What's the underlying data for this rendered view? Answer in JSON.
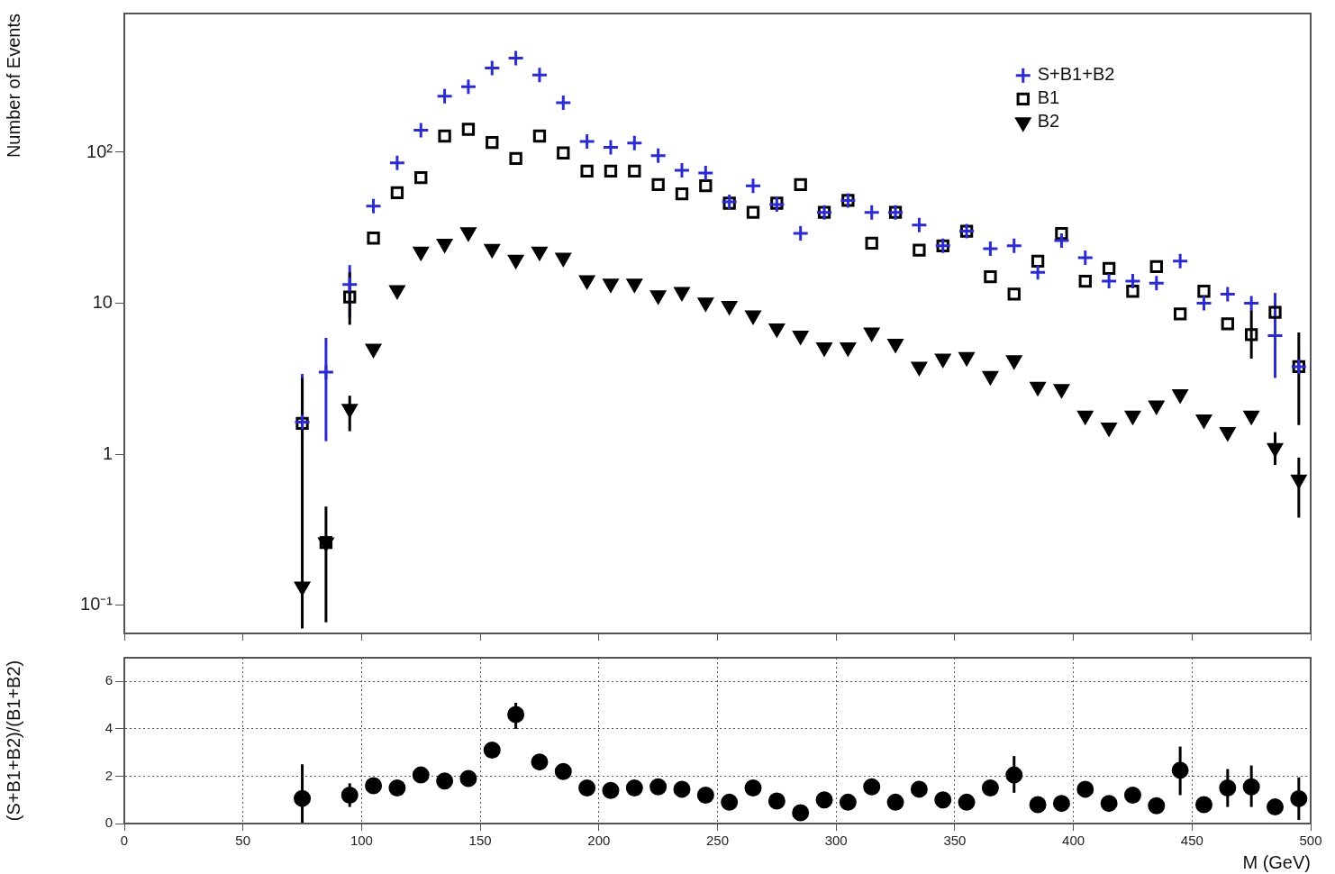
{
  "chart_data": [
    {
      "type": "scatter",
      "ylabel": "Number of Events",
      "log": "y",
      "grid": false,
      "legend": "top right",
      "tick_labels": "y",
      "x": [
        75,
        85,
        95,
        105,
        115,
        125,
        135,
        145,
        155,
        165,
        175,
        185,
        195,
        205,
        215,
        225,
        235,
        245,
        255,
        265,
        275,
        285,
        295,
        305,
        315,
        325,
        335,
        345,
        355,
        365,
        375,
        385,
        395,
        405,
        415,
        425,
        435,
        445,
        455,
        465,
        475,
        485,
        495
      ],
      "xlim": [
        0,
        500
      ],
      "xticks": [
        0,
        50,
        100,
        150,
        200,
        250,
        300,
        350,
        400,
        450,
        500
      ],
      "ylim": [
        0.065,
        830
      ],
      "yticks": [
        {
          "value": 0.1,
          "label": "10⁻¹"
        },
        1,
        10,
        {
          "value": 100,
          "label": "10²"
        }
      ],
      "series": [
        {
          "name": "S+B1+B2",
          "color": "#2b2bd0",
          "marker": "cross",
          "values": [
            1.63,
            3.5,
            13.3,
            44,
            85,
            140,
            235,
            272,
            362,
            420,
            325,
            213,
            118,
            108,
            115,
            95,
            76,
            73,
            47,
            60,
            45,
            29,
            40,
            48,
            40,
            40,
            33,
            24,
            30,
            23,
            24,
            16,
            26,
            20,
            14,
            14,
            13.6,
            19,
            10,
            11.5,
            10,
            6.1,
            3.8
          ],
          "errors": [
            [
              1.24,
              3.4
            ],
            [
              1.22,
              5.9
            ],
            [
              8,
              17.9
            ],
            null,
            null,
            null,
            null,
            null,
            null,
            null,
            null,
            null,
            null,
            null,
            null,
            null,
            null,
            null,
            null,
            null,
            null,
            null,
            null,
            null,
            null,
            null,
            null,
            null,
            null,
            null,
            null,
            null,
            null,
            null,
            null,
            null,
            null,
            null,
            null,
            null,
            null,
            [
              3.2,
              11.7
            ],
            null
          ]
        },
        {
          "name": "B1",
          "color": "#000000",
          "marker": "square",
          "values": [
            1.6,
            0.26,
            11,
            27,
            54,
            68,
            128,
            142,
            116,
            91,
            128,
            99,
            75,
            75,
            75,
            61,
            53,
            60,
            46,
            40,
            46,
            61,
            40,
            48,
            25,
            40,
            22.5,
            24,
            30,
            15,
            11.5,
            19,
            29,
            14,
            17,
            12,
            17.5,
            8.5,
            12,
            7.3,
            6.2,
            8.7,
            3.8
          ],
          "errors": [
            [
              0.07,
              3.2
            ],
            [
              0.077,
              0.45
            ],
            [
              7.2,
              16
            ],
            null,
            null,
            null,
            null,
            null,
            null,
            null,
            null,
            null,
            null,
            null,
            null,
            null,
            null,
            null,
            null,
            null,
            null,
            null,
            null,
            null,
            null,
            null,
            null,
            null,
            null,
            null,
            null,
            null,
            null,
            null,
            null,
            null,
            null,
            null,
            null,
            null,
            [
              4.3,
              9.0
            ],
            null,
            [
              1.56,
              6.4
            ]
          ]
        },
        {
          "name": "B2",
          "color": "#000000",
          "marker": "triangle",
          "values": [
            0.133,
            0.26,
            2.0,
            5.0,
            12.2,
            22,
            24.8,
            29.5,
            22.9,
            19.4,
            22,
            20,
            14.2,
            13.5,
            13.5,
            11.3,
            11.9,
            10.1,
            9.6,
            8.3,
            6.8,
            6.1,
            5.1,
            5.1,
            6.4,
            5.4,
            3.8,
            4.3,
            4.4,
            3.3,
            4.2,
            2.8,
            2.7,
            1.8,
            1.5,
            1.8,
            2.1,
            2.5,
            1.7,
            1.4,
            1.8,
            1.1,
            0.68
          ],
          "errors": [
            null,
            null,
            [
              1.42,
              2.44
            ],
            null,
            null,
            null,
            null,
            null,
            null,
            null,
            null,
            null,
            null,
            null,
            null,
            null,
            null,
            null,
            null,
            null,
            null,
            null,
            null,
            null,
            null,
            null,
            null,
            null,
            null,
            null,
            null,
            null,
            null,
            null,
            null,
            null,
            null,
            null,
            null,
            null,
            null,
            [
              0.85,
              1.4
            ],
            [
              0.38,
              0.95
            ]
          ]
        }
      ]
    },
    {
      "type": "scatter",
      "xlabel": "M (GeV)",
      "ylabel": "(S+B1+B2)/(B1+B2)",
      "grid": true,
      "x": [
        75,
        85,
        95,
        105,
        115,
        125,
        135,
        145,
        155,
        165,
        175,
        185,
        195,
        205,
        215,
        225,
        235,
        245,
        255,
        265,
        275,
        285,
        295,
        305,
        315,
        325,
        335,
        345,
        355,
        365,
        375,
        385,
        395,
        405,
        415,
        425,
        435,
        445,
        455,
        465,
        475,
        485,
        495
      ],
      "xlim": [
        0,
        500
      ],
      "xticks": [
        0,
        50,
        100,
        150,
        200,
        250,
        300,
        350,
        400,
        450,
        500
      ],
      "ylim": [
        0,
        7
      ],
      "yticks": [
        0,
        2,
        4,
        6
      ],
      "series": [
        {
          "color": "#000000",
          "marker": "circle",
          "values": [
            1.06,
            null,
            1.2,
            1.6,
            1.5,
            2.05,
            1.8,
            1.9,
            3.1,
            4.6,
            2.6,
            2.2,
            1.5,
            1.4,
            1.5,
            1.55,
            1.45,
            1.2,
            0.9,
            1.5,
            0.95,
            0.46,
            1.0,
            0.9,
            1.55,
            0.9,
            1.45,
            1.0,
            0.9,
            1.5,
            2.05,
            0.8,
            0.85,
            1.45,
            0.85,
            1.2,
            0.75,
            2.25,
            0.8,
            1.5,
            1.55,
            0.7,
            1.05
          ],
          "errors": [
            [
              0,
              2.5
            ],
            null,
            [
              0.7,
              1.7
            ],
            null,
            null,
            null,
            null,
            null,
            null,
            [
              4.0,
              5.1
            ],
            null,
            null,
            null,
            null,
            null,
            null,
            null,
            null,
            null,
            null,
            null,
            null,
            null,
            null,
            null,
            null,
            null,
            null,
            null,
            null,
            [
              1.3,
              2.85
            ],
            null,
            null,
            null,
            null,
            null,
            null,
            [
              1.2,
              3.25
            ],
            null,
            [
              0.7,
              2.3
            ],
            [
              0.7,
              2.45
            ],
            null,
            [
              0.15,
              1.95
            ]
          ]
        }
      ]
    }
  ]
}
